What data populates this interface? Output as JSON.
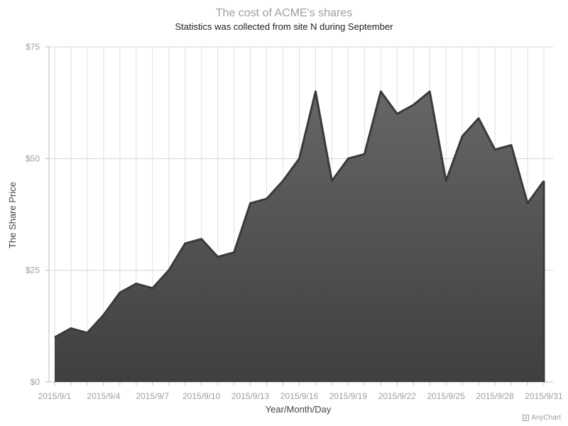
{
  "chart_data": {
    "type": "area",
    "title": "The cost of ACME's shares",
    "subtitle": "Statistics was collected from site N during September",
    "xlabel": "Year/Month/Day",
    "ylabel": "The Share Price",
    "ylim": [
      0,
      75
    ],
    "yticks": [
      0,
      25,
      50,
      75
    ],
    "ytick_labels": [
      "$0",
      "$25",
      "$50",
      "$75"
    ],
    "grid": true,
    "x": [
      "2015/9/1",
      "2015/9/2",
      "2015/9/3",
      "2015/9/4",
      "2015/9/5",
      "2015/9/6",
      "2015/9/7",
      "2015/9/8",
      "2015/9/9",
      "2015/9/10",
      "2015/9/11",
      "2015/9/12",
      "2015/9/13",
      "2015/9/14",
      "2015/9/15",
      "2015/9/16",
      "2015/9/17",
      "2015/9/18",
      "2015/9/19",
      "2015/9/20",
      "2015/9/21",
      "2015/9/22",
      "2015/9/23",
      "2015/9/24",
      "2015/9/25",
      "2015/9/26",
      "2015/9/27",
      "2015/9/28",
      "2015/9/29",
      "2015/9/30",
      "2015/9/31"
    ],
    "xtick_labels": [
      "2015/9/1",
      "2015/9/4",
      "2015/9/7",
      "2015/9/10",
      "2015/9/13",
      "2015/9/16",
      "2015/9/19",
      "2015/9/22",
      "2015/9/25",
      "2015/9/28",
      "2015/9/31"
    ],
    "series": [
      {
        "values": [
          10,
          12,
          11,
          15,
          20,
          22,
          21,
          25,
          31,
          32,
          28,
          29,
          40,
          41,
          45,
          50,
          65,
          45,
          50,
          51,
          65,
          60,
          62,
          65,
          45,
          55,
          59,
          52,
          53,
          40,
          45
        ],
        "color": "#5c5c5c"
      }
    ]
  },
  "credits": {
    "text": "AnyChart"
  }
}
